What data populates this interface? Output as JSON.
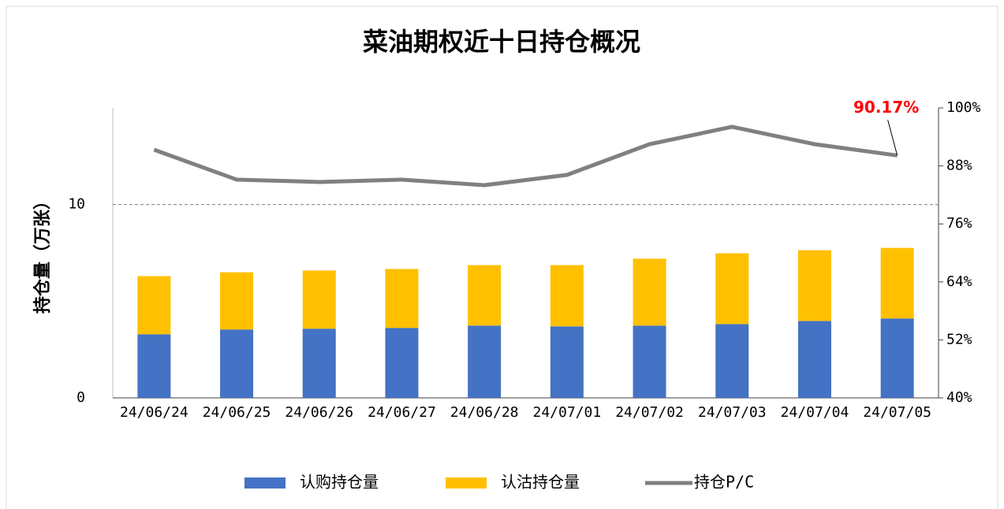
{
  "chart_data": {
    "type": "bar",
    "title": "菜油期权近十日持仓概况",
    "stacked": true,
    "ylabel": "持仓量（万张）",
    "categories": [
      "24/06/24",
      "24/06/25",
      "24/06/26",
      "24/06/27",
      "24/06/28",
      "24/07/01",
      "24/07/02",
      "24/07/03",
      "24/07/04",
      "24/07/05"
    ],
    "series": [
      {
        "name": "认购持仓量",
        "type": "bar",
        "color": "#4472c4",
        "values": [
          3.29,
          3.54,
          3.58,
          3.62,
          3.74,
          3.7,
          3.74,
          3.82,
          3.98,
          4.11
        ]
      },
      {
        "name": "认沽持仓量",
        "type": "bar",
        "color": "#ffc000",
        "values": [
          3.01,
          2.96,
          3.01,
          3.05,
          3.13,
          3.17,
          3.46,
          3.66,
          3.66,
          3.65
        ]
      },
      {
        "name": "持仓P/C",
        "type": "line",
        "axis": "y2",
        "color": "#808080",
        "values": [
          91.36,
          85.17,
          84.68,
          85.17,
          84.02,
          86.14,
          92.5,
          96.09,
          92.5,
          90.17
        ],
        "value_labels": [
          null,
          null,
          null,
          null,
          null,
          null,
          null,
          null,
          null,
          "90.17%"
        ],
        "label_color": "#ff0000"
      }
    ],
    "ylim": [
      0,
      15
    ],
    "yticks": [
      0,
      10
    ],
    "y2lim": [
      40,
      100
    ],
    "y2ticks": [
      {
        "value": 40,
        "label": "40%"
      },
      {
        "value": 52,
        "label": "52%"
      },
      {
        "value": 64,
        "label": "64%"
      },
      {
        "value": 76,
        "label": "76%"
      },
      {
        "value": 88,
        "label": "88%"
      },
      {
        "value": 100,
        "label": "100%"
      }
    ],
    "grid": true,
    "legend": "bottom"
  }
}
